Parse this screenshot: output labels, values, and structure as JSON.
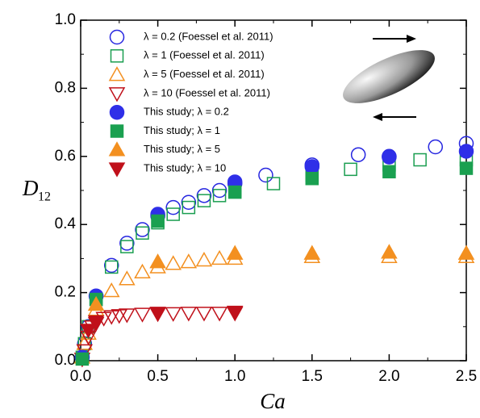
{
  "chart_data": {
    "type": "scatter",
    "xlabel": "Ca",
    "ylabel": "D",
    "ylabel_subscript": "12",
    "xlim": [
      0,
      2.5
    ],
    "ylim": [
      0,
      1
    ],
    "xticks": [
      {
        "value": 0,
        "label": "0.0"
      },
      0.5,
      {
        "value": 1,
        "label": "1.0"
      },
      1.5,
      {
        "value": 2,
        "label": "2.0"
      },
      2.5
    ],
    "yticks": [
      {
        "value": 0,
        "label": "0.0"
      },
      0.2,
      0.4,
      0.6,
      0.8,
      {
        "value": 1,
        "label": "1.0"
      }
    ],
    "legend": "upper left",
    "series": [
      {
        "name": "λ = 0.2 (Foessel et al. 2011)",
        "color": "#2626e0",
        "marker": "circle",
        "filled": false,
        "x": [
          0.01,
          0.025,
          0.05,
          0.1,
          0.2,
          0.3,
          0.4,
          0.5,
          0.6,
          0.7,
          0.8,
          0.9,
          1.0,
          1.2,
          1.5,
          1.8,
          2.0,
          2.3,
          2.5
        ],
        "values": [
          0.01,
          0.05,
          0.1,
          0.19,
          0.28,
          0.345,
          0.385,
          0.425,
          0.45,
          0.465,
          0.485,
          0.5,
          0.52,
          0.545,
          0.575,
          0.605,
          0.6,
          0.628,
          0.638
        ]
      },
      {
        "name": "λ = 1 (Foessel et al. 2011)",
        "color": "#1a9e50",
        "marker": "square",
        "filled": false,
        "x": [
          0.01,
          0.025,
          0.05,
          0.1,
          0.2,
          0.3,
          0.4,
          0.5,
          0.6,
          0.7,
          0.8,
          0.9,
          1.0,
          1.25,
          1.5,
          1.75,
          2.0,
          2.2,
          2.5
        ],
        "values": [
          0.01,
          0.05,
          0.1,
          0.18,
          0.275,
          0.335,
          0.375,
          0.405,
          0.43,
          0.45,
          0.47,
          0.485,
          0.5,
          0.52,
          0.545,
          0.562,
          0.575,
          0.59,
          0.59
        ]
      },
      {
        "name": "λ = 5 (Foessel et al. 2011)",
        "color": "#f39020",
        "marker": "triangle-up",
        "filled": false,
        "x": [
          0.01,
          0.025,
          0.05,
          0.1,
          0.2,
          0.3,
          0.4,
          0.5,
          0.6,
          0.7,
          0.8,
          0.9,
          1.0,
          1.5,
          2.0,
          2.5
        ],
        "values": [
          0.01,
          0.05,
          0.08,
          0.15,
          0.205,
          0.24,
          0.26,
          0.275,
          0.285,
          0.29,
          0.295,
          0.3,
          0.3,
          0.305,
          0.305,
          0.305
        ]
      },
      {
        "name": "λ = 10 (Foessel et al. 2011)",
        "color": "#c0101a",
        "marker": "triangle-down",
        "filled": false,
        "x": [
          0.01,
          0.025,
          0.05,
          0.075,
          0.1,
          0.15,
          0.2,
          0.25,
          0.3,
          0.4,
          0.5,
          0.6,
          0.7,
          0.8,
          0.9,
          1.0
        ],
        "values": [
          0.005,
          0.03,
          0.07,
          0.1,
          0.11,
          0.125,
          0.13,
          0.133,
          0.135,
          0.137,
          0.138,
          0.139,
          0.14,
          0.14,
          0.14,
          0.14
        ]
      },
      {
        "name": "This study; λ = 0.2",
        "color": "#2f2fe8",
        "marker": "circle",
        "filled": true,
        "x": [
          0.01,
          0.1,
          0.5,
          1.0,
          1.5,
          2.0,
          2.5
        ],
        "values": [
          0.01,
          0.19,
          0.43,
          0.525,
          0.57,
          0.598,
          0.615
        ]
      },
      {
        "name": "This study; λ = 1",
        "color": "#1aa050",
        "marker": "square",
        "filled": true,
        "x": [
          0.01,
          0.1,
          0.5,
          1.0,
          1.5,
          2.0,
          2.5
        ],
        "values": [
          0.005,
          0.18,
          0.41,
          0.495,
          0.535,
          0.555,
          0.565
        ]
      },
      {
        "name": "This study; λ = 5",
        "color": "#f39020",
        "marker": "triangle-up",
        "filled": true,
        "x": [
          0.1,
          0.5,
          1.0,
          1.5,
          2.0,
          2.5
        ],
        "values": [
          0.165,
          0.29,
          0.315,
          0.315,
          0.318,
          0.315
        ]
      },
      {
        "name": "This study; λ = 10",
        "color": "#c0101a",
        "marker": "triangle-down",
        "filled": true,
        "x": [
          0.05,
          0.1,
          0.5,
          1.0
        ],
        "values": [
          0.09,
          0.115,
          0.14,
          0.143
        ]
      }
    ]
  }
}
